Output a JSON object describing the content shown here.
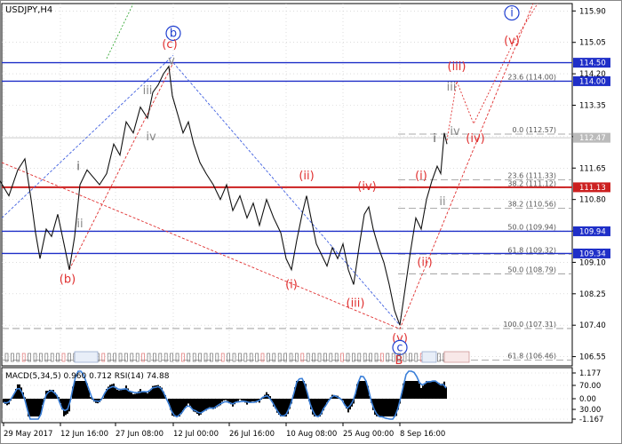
{
  "chart_data": {
    "type": "line",
    "title": "USDJPY,H4",
    "price_axis": {
      "range": [
        106.3,
        116.1
      ],
      "ticks": [
        "115.90",
        "115.05",
        "114.20",
        "113.35",
        "112.50",
        "111.65",
        "110.80",
        "109.95",
        "109.10",
        "108.25",
        "107.40",
        "106.55"
      ]
    },
    "time_labels": [
      "29 May 2017",
      "12 Jun 16:00",
      "27 Jun 08:00",
      "12 Jul 00:00",
      "26 Jul 16:00",
      "10 Aug 08:00",
      "25 Aug 00:00",
      "8 Sep 16:00"
    ],
    "levels": [
      {
        "price": 114.5,
        "label": "114.50",
        "kind": "blue"
      },
      {
        "price": 114.0,
        "label": "114.00",
        "kind": "blue"
      },
      {
        "price": 112.47,
        "label": "112.47",
        "kind": "current"
      },
      {
        "price": 111.13,
        "label": "111.13",
        "kind": "red"
      },
      {
        "price": 109.94,
        "label": "109.94",
        "kind": "blue"
      },
      {
        "price": 109.34,
        "label": "109.34",
        "kind": "blue"
      }
    ],
    "fib_levels": [
      {
        "price": 114.0,
        "label": "23.6 (114.00)"
      },
      {
        "price": 112.57,
        "label": "0.0 (112.57)"
      },
      {
        "price": 111.33,
        "label": "23.6 (111.33)"
      },
      {
        "price": 111.12,
        "label": "38.2 (111.12)"
      },
      {
        "price": 110.56,
        "label": "38.2 (110.56)"
      },
      {
        "price": 109.94,
        "label": "50.0 (109.94)"
      },
      {
        "price": 109.32,
        "label": "61.8 (109.32)"
      },
      {
        "price": 108.79,
        "label": "50.0 (108.79)"
      },
      {
        "price": 107.31,
        "label": "100.0 (107.31)"
      },
      {
        "price": 106.46,
        "label": "61.8 (106.46)"
      }
    ],
    "price_path": [
      [
        0,
        111.3
      ],
      [
        10,
        110.9
      ],
      [
        20,
        111.6
      ],
      [
        28,
        111.9
      ],
      [
        35,
        110.8
      ],
      [
        40,
        109.9
      ],
      [
        45,
        109.2
      ],
      [
        52,
        110.0
      ],
      [
        58,
        109.8
      ],
      [
        65,
        110.4
      ],
      [
        72,
        109.6
      ],
      [
        78,
        108.9
      ],
      [
        84,
        109.8
      ],
      [
        90,
        111.2
      ],
      [
        98,
        111.6
      ],
      [
        105,
        111.4
      ],
      [
        112,
        111.2
      ],
      [
        120,
        111.5
      ],
      [
        128,
        112.3
      ],
      [
        135,
        112.0
      ],
      [
        142,
        112.9
      ],
      [
        150,
        112.6
      ],
      [
        158,
        113.3
      ],
      [
        166,
        113.0
      ],
      [
        172,
        113.7
      ],
      [
        178,
        113.9
      ],
      [
        184,
        114.2
      ],
      [
        190,
        114.4
      ],
      [
        194,
        113.6
      ],
      [
        200,
        113.1
      ],
      [
        206,
        112.6
      ],
      [
        212,
        112.9
      ],
      [
        218,
        112.3
      ],
      [
        225,
        111.8
      ],
      [
        232,
        111.5
      ],
      [
        240,
        111.2
      ],
      [
        248,
        110.8
      ],
      [
        255,
        111.2
      ],
      [
        262,
        110.5
      ],
      [
        270,
        110.9
      ],
      [
        278,
        110.3
      ],
      [
        285,
        110.7
      ],
      [
        292,
        110.1
      ],
      [
        300,
        110.8
      ],
      [
        308,
        110.3
      ],
      [
        316,
        109.9
      ],
      [
        322,
        109.2
      ],
      [
        328,
        108.9
      ],
      [
        334,
        109.7
      ],
      [
        340,
        110.4
      ],
      [
        345,
        110.9
      ],
      [
        350,
        110.3
      ],
      [
        356,
        109.6
      ],
      [
        362,
        109.3
      ],
      [
        368,
        109.0
      ],
      [
        374,
        109.5
      ],
      [
        380,
        109.2
      ],
      [
        386,
        109.6
      ],
      [
        392,
        108.9
      ],
      [
        398,
        108.5
      ],
      [
        404,
        109.5
      ],
      [
        410,
        110.4
      ],
      [
        415,
        110.6
      ],
      [
        420,
        110.0
      ],
      [
        426,
        109.5
      ],
      [
        432,
        109.1
      ],
      [
        438,
        108.5
      ],
      [
        444,
        107.8
      ],
      [
        450,
        107.4
      ],
      [
        456,
        108.4
      ],
      [
        462,
        109.4
      ],
      [
        468,
        110.3
      ],
      [
        474,
        110.0
      ],
      [
        480,
        110.8
      ],
      [
        486,
        111.3
      ],
      [
        492,
        111.7
      ],
      [
        496,
        111.5
      ],
      [
        500,
        112.6
      ],
      [
        503,
        112.3
      ]
    ],
    "wave_labels": [
      {
        "text": "b",
        "x": 195,
        "price": 115.2,
        "color": "#1f3fd0",
        "circle": true
      },
      {
        "text": "(c)",
        "x": 191,
        "price": 114.9,
        "color": "#e03030"
      },
      {
        "text": "v",
        "x": 193,
        "price": 114.45,
        "color": "#888888"
      },
      {
        "text": "iii",
        "x": 166,
        "price": 113.65,
        "color": "#888888"
      },
      {
        "text": "iv",
        "x": 170,
        "price": 112.4,
        "color": "#888888"
      },
      {
        "text": "i",
        "x": 88,
        "price": 111.6,
        "color": "#555555"
      },
      {
        "text": "ii",
        "x": 90,
        "price": 110.05,
        "color": "#888888"
      },
      {
        "text": "(b)",
        "x": 76,
        "price": 108.55,
        "color": "#e03030"
      },
      {
        "text": "(ii)",
        "x": 345,
        "price": 111.35,
        "color": "#e03030"
      },
      {
        "text": "(iv)",
        "x": 413,
        "price": 111.05,
        "color": "#e03030"
      },
      {
        "text": "(i)",
        "x": 328,
        "price": 108.4,
        "color": "#e03030"
      },
      {
        "text": "(iii)",
        "x": 400,
        "price": 107.9,
        "color": "#e03030"
      },
      {
        "text": "(v)",
        "x": 450,
        "price": 106.95,
        "color": "#e03030"
      },
      {
        "text": "c",
        "x": 450,
        "price": 106.7,
        "color": "#1f3fd0",
        "circle": true
      },
      {
        "text": "B",
        "x": 449,
        "price": 106.35,
        "color": "#e03030"
      },
      {
        "text": "(i)",
        "x": 474,
        "price": 111.35,
        "color": "#e03030"
      },
      {
        "text": "(ii)",
        "x": 478,
        "price": 109.0,
        "color": "#e03030"
      },
      {
        "text": "i",
        "x": 489,
        "price": 112.35,
        "color": "#555555"
      },
      {
        "text": "ii",
        "x": 498,
        "price": 110.65,
        "color": "#888888"
      },
      {
        "text": "(iii)",
        "x": 514,
        "price": 114.3,
        "color": "#e03030"
      },
      {
        "text": "iii",
        "x": 508,
        "price": 113.75,
        "color": "#888888"
      },
      {
        "text": "iv",
        "x": 512,
        "price": 112.55,
        "color": "#888888"
      },
      {
        "text": "(iv)",
        "x": 535,
        "price": 112.35,
        "color": "#e03030"
      },
      {
        "text": "(v)",
        "x": 576,
        "price": 115.0,
        "color": "#e03030"
      },
      {
        "text": "i",
        "x": 576,
        "price": 115.75,
        "color": "#1f3fd0",
        "circle": true
      }
    ],
    "indicator": {
      "title": "MACD(5,34,5) 0.960 0.712 RSI(14) 74.88",
      "scale_ticks": [
        "1.177",
        "70.00",
        "0.00",
        "30.00",
        "-1.167"
      ]
    },
    "colors": {
      "grid": "#c8c8c8",
      "level_blue": "#1f2fc8",
      "level_red": "#cc2020",
      "price": "#111111",
      "forecast": "#e03030",
      "rsi": "#3a7fd8"
    }
  }
}
